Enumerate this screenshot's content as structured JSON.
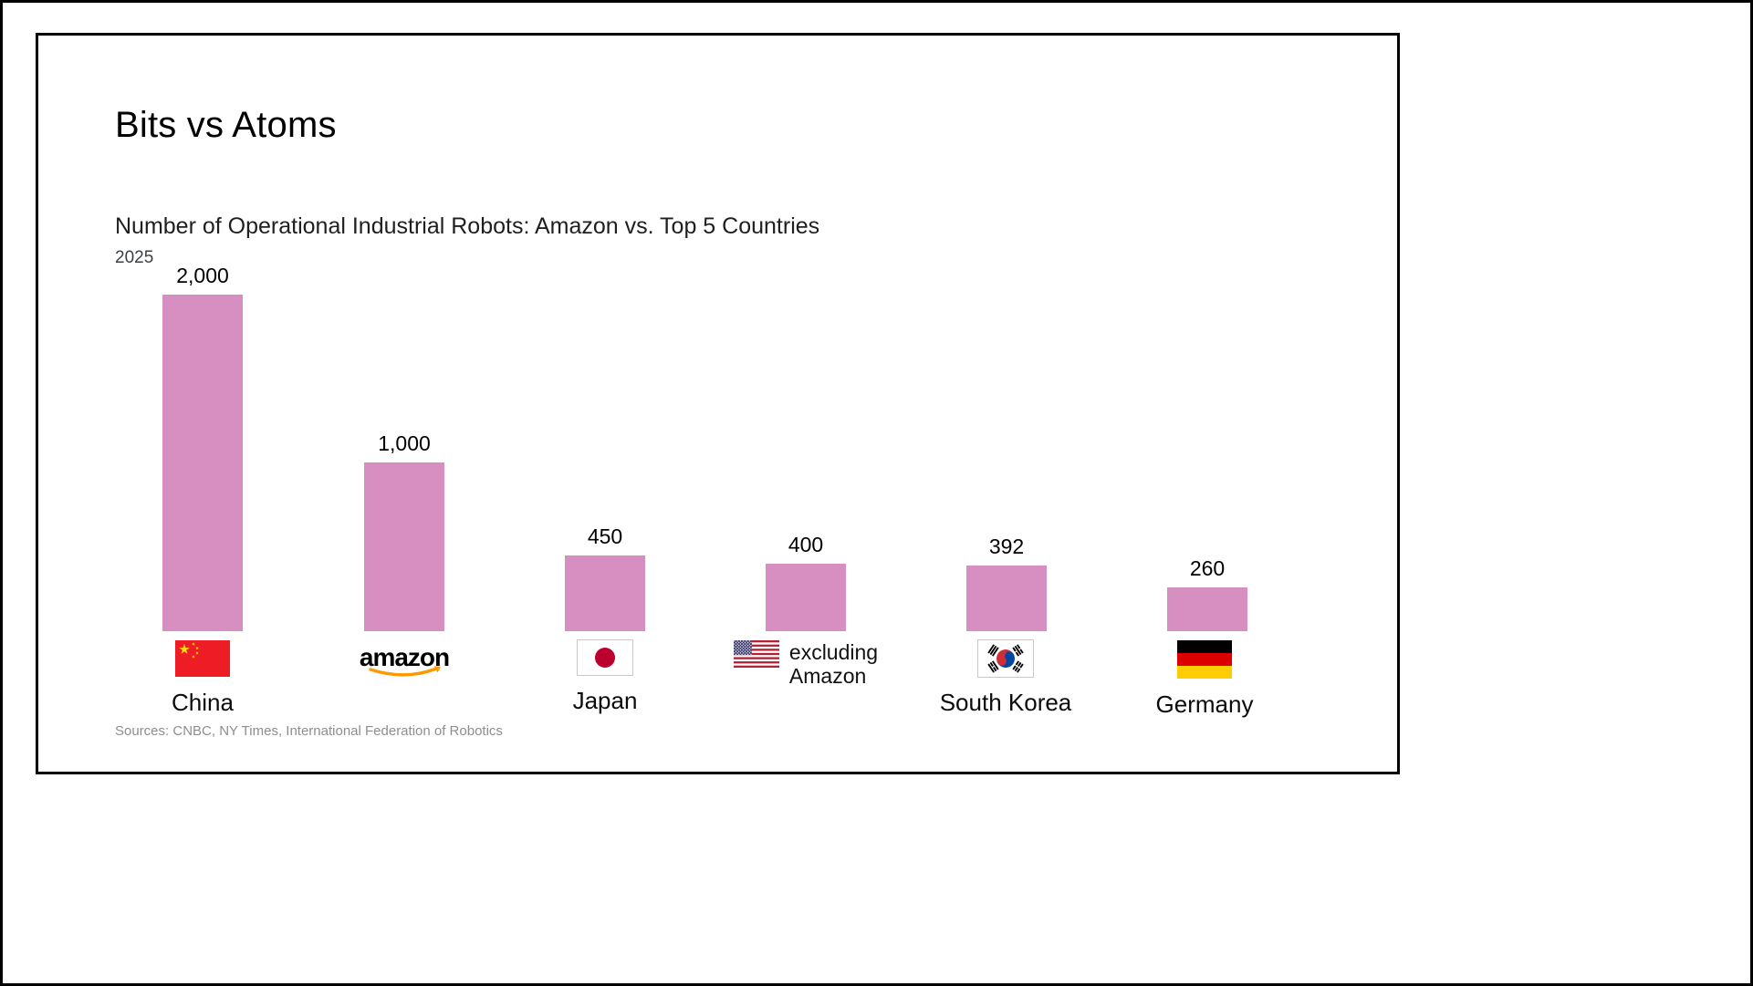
{
  "slide": {
    "title": "Bits vs Atoms",
    "chart_heading": "Number of Operational Industrial Robots: Amazon vs. Top 5 Countries",
    "year": "2025",
    "sources": "Sources: CNBC, NY Times, International Federation of Robotics"
  },
  "chart_data": {
    "type": "bar",
    "title": "Number of Operational Industrial Robots: Amazon vs. Top 5 Countries",
    "subtitle": "2025",
    "categories": [
      "China",
      "Amazon",
      "Japan",
      "United States excluding Amazon",
      "South Korea",
      "Germany"
    ],
    "values": [
      2000,
      1000,
      450,
      400,
      392,
      260
    ],
    "value_labels": [
      "2,000",
      "1,000",
      "450",
      "400",
      "392",
      "260"
    ],
    "bar_color": "#d78fc1",
    "ylim": [
      0,
      2000
    ],
    "grid": false,
    "legend": false,
    "xlabel": "",
    "ylabel": ""
  },
  "bars": [
    {
      "value": 2000,
      "value_label": "2,000",
      "name": "China",
      "icon": "china-flag"
    },
    {
      "value": 1000,
      "value_label": "1,000",
      "name": "",
      "icon": "amazon-logo",
      "logo_text": "amazon"
    },
    {
      "value": 450,
      "value_label": "450",
      "name": "Japan",
      "icon": "japan-flag"
    },
    {
      "value": 400,
      "value_label": "400",
      "name": "",
      "icon": "us-flag",
      "note": [
        "excluding",
        "Amazon"
      ]
    },
    {
      "value": 392,
      "value_label": "392",
      "name": "South Korea",
      "icon": "south-korea-flag"
    },
    {
      "value": 260,
      "value_label": "260",
      "name": "Germany",
      "icon": "germany-flag"
    }
  ]
}
